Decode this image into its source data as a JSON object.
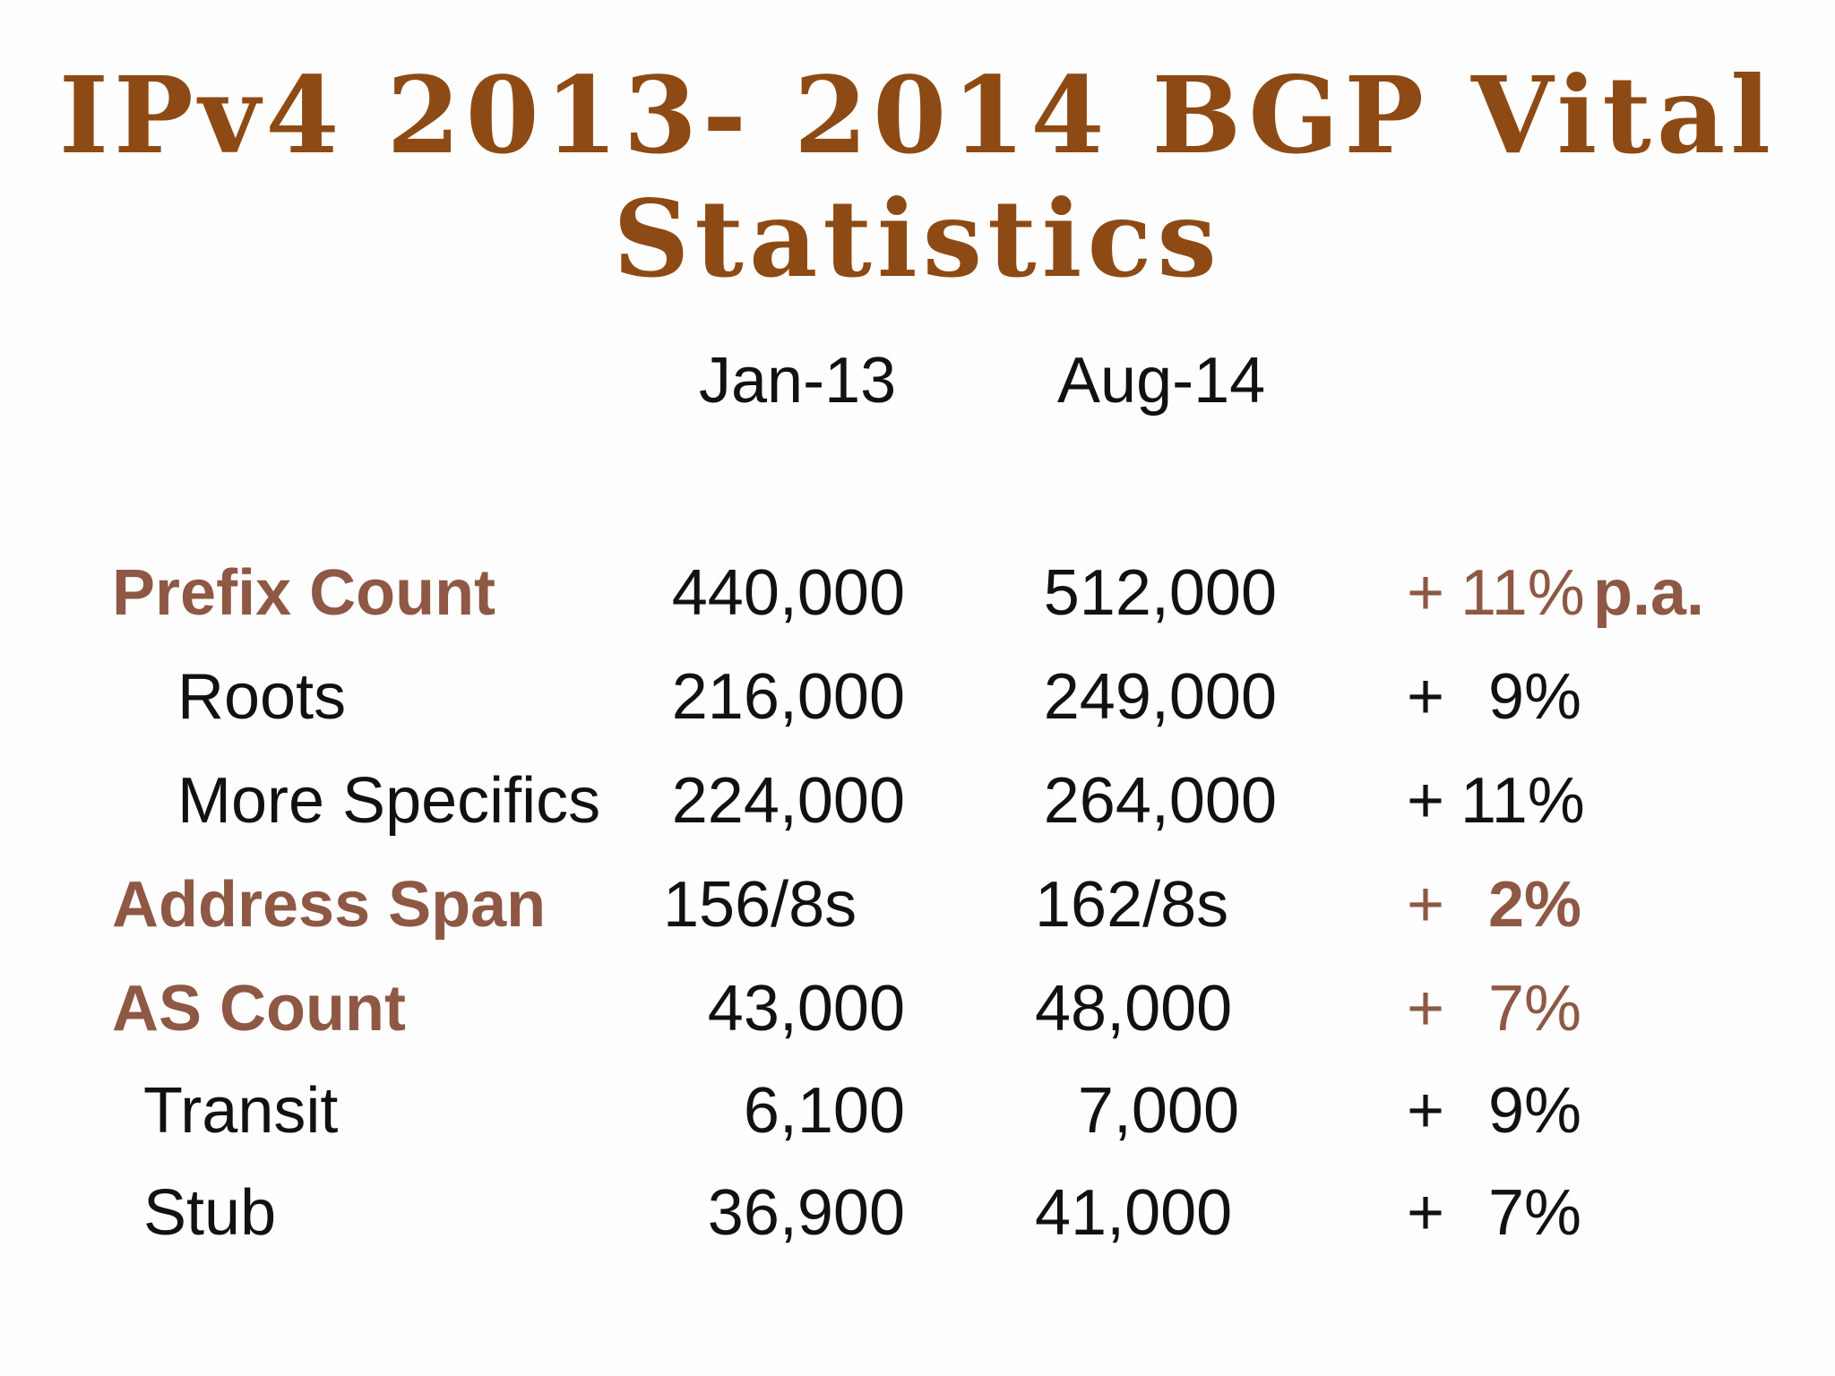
{
  "title": {
    "line1": "IPv4 2013- 2014 BGP Vital",
    "line2": "Statistics"
  },
  "columns": {
    "jan": "Jan-13",
    "aug": "Aug-14"
  },
  "rows": [
    {
      "label": "Prefix Count",
      "jan": "440,000",
      "aug": "512,000",
      "plus": "+",
      "pct": "11%",
      "suffix": "p.a."
    },
    {
      "label": "Roots",
      "jan": "216,000",
      "aug": "249,000",
      "plus": "+",
      "pct": "9%"
    },
    {
      "label": "More Specifics",
      "jan": "224,000",
      "aug": "264,000",
      "plus": "+",
      "pct": "11%"
    },
    {
      "label": "Address Span",
      "jan": "156/8s",
      "aug": "162/8s",
      "plus": "+",
      "pct": "2%"
    },
    {
      "label": "AS Count",
      "jan": "43,000",
      "aug": "48,000",
      "plus": "+",
      "pct": "7%"
    },
    {
      "label": "Transit",
      "jan": "6,100",
      "aug": "7,000",
      "plus": "+",
      "pct": "9%"
    },
    {
      "label": "Stub",
      "jan": "36,900",
      "aug": "41,000",
      "plus": "+",
      "pct": "7%"
    }
  ],
  "colors": {
    "title": "#8e4a14",
    "highlight": "#8e5844",
    "text": "#111111",
    "background": "#fefefe"
  }
}
